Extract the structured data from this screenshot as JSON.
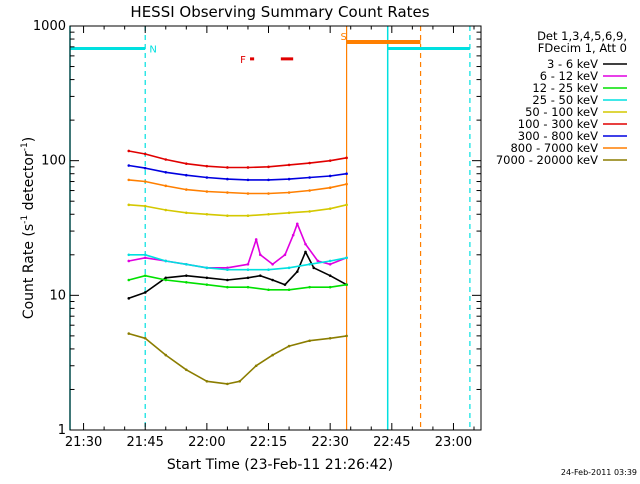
{
  "chart_data": {
    "type": "line",
    "title": "HESSI Observing Summary Count Rates",
    "xlabel": "Start Time (23-Feb-11 21:26:42)",
    "ylabel_main": "Count Rate (s",
    "ylabel_sup1": "-1",
    "ylabel_mid": " detector",
    "ylabel_sup2": "-1",
    "ylabel_end": ")",
    "y_scale": "log",
    "ylim": [
      1,
      1000
    ],
    "xlim": [
      "21:26:42",
      "23:06:42"
    ],
    "x_ticks": [
      "21:30",
      "21:45",
      "22:00",
      "22:15",
      "22:30",
      "22:45",
      "23:00"
    ],
    "y_ticks": [
      "1",
      "10",
      "100",
      "1000"
    ],
    "footer": "24-Feb-2011 03:39",
    "legend": {
      "placement": "right",
      "header1": "Det 1,3,4,5,6,9,",
      "header2": "FDecim 1, Att 0",
      "entries": [
        {
          "label": "3 - 6 keV",
          "color": "#000000"
        },
        {
          "label": "6 - 12 keV",
          "color": "#e000e0"
        },
        {
          "label": "12 - 25 keV",
          "color": "#00e000"
        },
        {
          "label": "25 - 50 keV",
          "color": "#00e0e0"
        },
        {
          "label": "50 - 100 keV",
          "color": "#d4c800"
        },
        {
          "label": "100 - 300 keV",
          "color": "#e00000"
        },
        {
          "label": "300 - 800 keV",
          "color": "#0000e0"
        },
        {
          "label": "800 - 7000 keV",
          "color": "#ff7f00"
        },
        {
          "label": "7000 - 20000 keV",
          "color": "#8b7d00"
        }
      ]
    },
    "series": [
      {
        "name": "3 - 6 keV",
        "color": "#000000",
        "points": [
          [
            "21:41:00",
            9.5
          ],
          [
            "21:45:00",
            10.5
          ],
          [
            "21:50:00",
            13.5
          ],
          [
            "21:55:00",
            14
          ],
          [
            "22:00:00",
            13.5
          ],
          [
            "22:05:00",
            13
          ],
          [
            "22:10:00",
            13.5
          ],
          [
            "22:13:00",
            14
          ],
          [
            "22:16:00",
            13
          ],
          [
            "22:19:00",
            12
          ],
          [
            "22:22:00",
            15
          ],
          [
            "22:24:00",
            21
          ],
          [
            "22:26:00",
            16
          ],
          [
            "22:30:00",
            14
          ],
          [
            "22:34:00",
            12
          ]
        ]
      },
      {
        "name": "6 - 12 keV",
        "color": "#e000e0",
        "points": [
          [
            "21:41:00",
            18
          ],
          [
            "21:45:00",
            19
          ],
          [
            "21:50:00",
            18
          ],
          [
            "21:55:00",
            17
          ],
          [
            "22:00:00",
            16
          ],
          [
            "22:05:00",
            16
          ],
          [
            "22:10:00",
            17
          ],
          [
            "22:12:00",
            26
          ],
          [
            "22:13:00",
            20
          ],
          [
            "22:16:00",
            17
          ],
          [
            "22:19:00",
            20
          ],
          [
            "22:21:00",
            28
          ],
          [
            "22:22:00",
            34
          ],
          [
            "22:24:00",
            24
          ],
          [
            "22:27:00",
            18
          ],
          [
            "22:30:00",
            17
          ],
          [
            "22:34:00",
            19
          ]
        ]
      },
      {
        "name": "12 - 25 keV",
        "color": "#00e000",
        "points": [
          [
            "21:41:00",
            13
          ],
          [
            "21:45:00",
            14
          ],
          [
            "21:50:00",
            13
          ],
          [
            "21:55:00",
            12.5
          ],
          [
            "22:00:00",
            12
          ],
          [
            "22:05:00",
            11.5
          ],
          [
            "22:10:00",
            11.5
          ],
          [
            "22:15:00",
            11
          ],
          [
            "22:20:00",
            11
          ],
          [
            "22:25:00",
            11.5
          ],
          [
            "22:30:00",
            11.5
          ],
          [
            "22:34:00",
            12
          ]
        ]
      },
      {
        "name": "25 - 50 keV",
        "color": "#00e0e0",
        "points": [
          [
            "21:41:00",
            20
          ],
          [
            "21:45:00",
            20
          ],
          [
            "21:50:00",
            18
          ],
          [
            "21:55:00",
            17
          ],
          [
            "22:00:00",
            16
          ],
          [
            "22:05:00",
            15.5
          ],
          [
            "22:10:00",
            15.5
          ],
          [
            "22:15:00",
            15.5
          ],
          [
            "22:20:00",
            16
          ],
          [
            "22:25:00",
            17
          ],
          [
            "22:30:00",
            18
          ],
          [
            "22:34:00",
            19
          ]
        ]
      },
      {
        "name": "50 - 100 keV",
        "color": "#d4c800",
        "points": [
          [
            "21:41:00",
            47
          ],
          [
            "21:45:00",
            46
          ],
          [
            "21:50:00",
            43
          ],
          [
            "21:55:00",
            41
          ],
          [
            "22:00:00",
            40
          ],
          [
            "22:05:00",
            39
          ],
          [
            "22:10:00",
            39
          ],
          [
            "22:15:00",
            40
          ],
          [
            "22:20:00",
            41
          ],
          [
            "22:25:00",
            42
          ],
          [
            "22:30:00",
            44
          ],
          [
            "22:34:00",
            47
          ]
        ]
      },
      {
        "name": "100 - 300 keV",
        "color": "#e00000",
        "points": [
          [
            "21:41:00",
            118
          ],
          [
            "21:45:00",
            112
          ],
          [
            "21:50:00",
            102
          ],
          [
            "21:55:00",
            95
          ],
          [
            "22:00:00",
            91
          ],
          [
            "22:05:00",
            89
          ],
          [
            "22:10:00",
            89
          ],
          [
            "22:15:00",
            90
          ],
          [
            "22:20:00",
            93
          ],
          [
            "22:25:00",
            96
          ],
          [
            "22:30:00",
            100
          ],
          [
            "22:34:00",
            105
          ]
        ]
      },
      {
        "name": "300 - 800 keV",
        "color": "#0000e0",
        "points": [
          [
            "21:41:00",
            92
          ],
          [
            "21:45:00",
            88
          ],
          [
            "21:50:00",
            82
          ],
          [
            "21:55:00",
            78
          ],
          [
            "22:00:00",
            75
          ],
          [
            "22:05:00",
            73
          ],
          [
            "22:10:00",
            72
          ],
          [
            "22:15:00",
            72
          ],
          [
            "22:20:00",
            73
          ],
          [
            "22:25:00",
            75
          ],
          [
            "22:30:00",
            77
          ],
          [
            "22:34:00",
            80
          ]
        ]
      },
      {
        "name": "800 - 7000 keV",
        "color": "#ff7f00",
        "points": [
          [
            "21:41:00",
            72
          ],
          [
            "21:45:00",
            70
          ],
          [
            "21:50:00",
            65
          ],
          [
            "21:55:00",
            61
          ],
          [
            "22:00:00",
            59
          ],
          [
            "22:05:00",
            58
          ],
          [
            "22:10:00",
            57
          ],
          [
            "22:15:00",
            57
          ],
          [
            "22:20:00",
            58
          ],
          [
            "22:25:00",
            60
          ],
          [
            "22:30:00",
            63
          ],
          [
            "22:34:00",
            67
          ]
        ]
      },
      {
        "name": "7000 - 20000 keV",
        "color": "#8b7d00",
        "points": [
          [
            "21:41:00",
            5.2
          ],
          [
            "21:45:00",
            4.8
          ],
          [
            "21:50:00",
            3.6
          ],
          [
            "21:55:00",
            2.8
          ],
          [
            "22:00:00",
            2.3
          ],
          [
            "22:05:00",
            2.2
          ],
          [
            "22:08:00",
            2.3
          ],
          [
            "22:12:00",
            3.0
          ],
          [
            "22:16:00",
            3.6
          ],
          [
            "22:20:00",
            4.2
          ],
          [
            "22:25:00",
            4.6
          ],
          [
            "22:30:00",
            4.8
          ],
          [
            "22:34:00",
            5.0
          ]
        ]
      }
    ],
    "annotations": {
      "night_intervals": [
        [
          "21:26:42",
          "21:45:00"
        ],
        [
          "22:44:00",
          "23:04:00"
        ]
      ],
      "night_level": 680,
      "night_color": "#00e0e0",
      "night_label": "N",
      "night_label_time": "21:46:00",
      "saa_interval": [
        "22:34:00",
        "22:52:00"
      ],
      "saa_level": 760,
      "saa_color": "#ff7f00",
      "saa_label": "S",
      "saa_label_time": "22:32:30",
      "flare_label": "F",
      "flare_label_time": "22:09:30",
      "flare_color": "#e00000",
      "flare_level": 570,
      "flare_bars": [
        [
          "22:10:30",
          "22:11:30"
        ],
        [
          "22:18:00",
          "22:21:00"
        ]
      ],
      "vlines_cyan_dashed": [
        "21:45:00",
        "23:04:00"
      ],
      "vlines_cyan_solid": [
        "21:26:42",
        "22:44:00"
      ],
      "vlines_orange_solid": [
        "22:34:00"
      ],
      "vlines_orange_dashed": [
        "22:52:00"
      ]
    }
  }
}
